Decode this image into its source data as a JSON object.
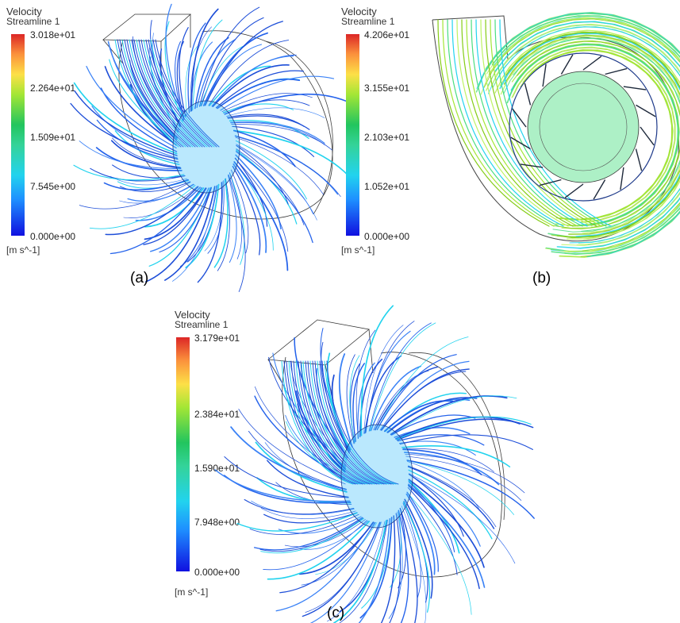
{
  "panels": [
    {
      "caption": "(a)",
      "legend": {
        "variable": "Velocity",
        "name": "Streamline 1",
        "ticks": [
          "3.018e+01",
          "2.264e+01",
          "1.509e+01",
          "7.545e+00",
          "0.000e+00"
        ],
        "unit": "[m s^-1]"
      }
    },
    {
      "caption": "(b)",
      "legend": {
        "variable": "Velocity",
        "name": "Streamline 1",
        "ticks": [
          "4.206e+01",
          "3.155e+01",
          "2.103e+01",
          "1.052e+01",
          "0.000e+00"
        ],
        "unit": "[m s^-1]"
      }
    },
    {
      "caption": "(c)",
      "legend": {
        "variable": "Velocity",
        "name": "Streamline 1",
        "ticks": [
          "3.179e+01",
          "2.384e+01",
          "1.590e+01",
          "7.948e+00",
          "0.000e+00"
        ],
        "unit": "[m s^-1]"
      }
    }
  ],
  "colors": {
    "streamline_low": "#1d4ed8",
    "streamline_mid": "#22d3ee",
    "streamline_high": "#84cc16",
    "outline": "#222222"
  }
}
